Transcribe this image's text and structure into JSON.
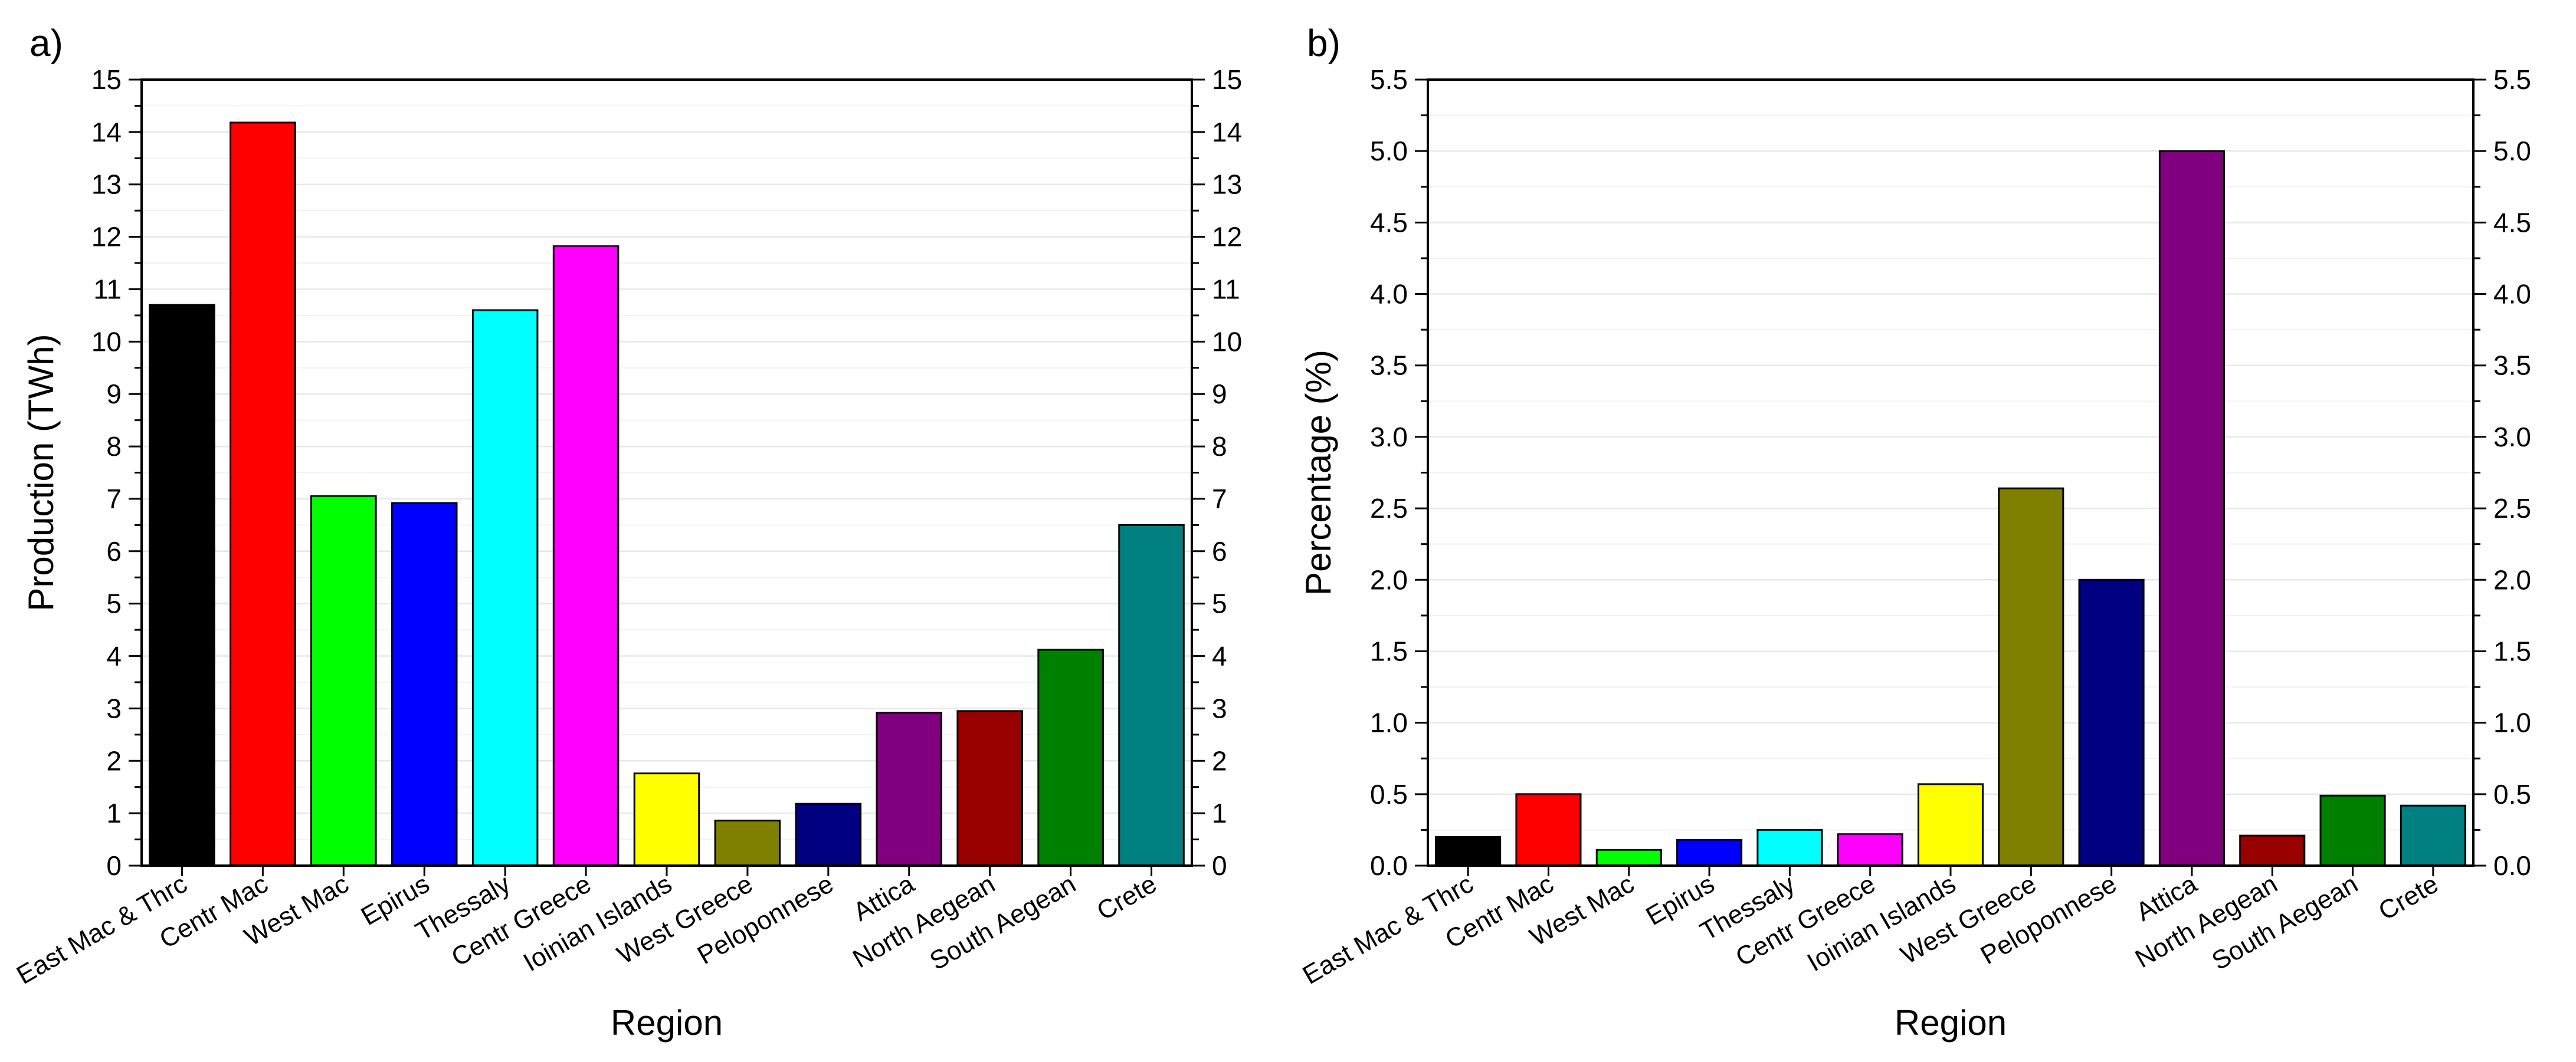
{
  "chart_data": [
    {
      "panel_label": "a)",
      "type": "bar",
      "xlabel": "Region",
      "ylabel": "Production (TWh)",
      "ylim": [
        0,
        15
      ],
      "y_major_step": 1,
      "y_decimals": 0,
      "categories": [
        "East Mac & Thrc",
        "Centr Mac",
        "West Mac",
        "Epirus",
        "Thessaly",
        "Centr Greece",
        "Ioinian Islands",
        "West Greece",
        "Peloponnese",
        "Attica",
        "North Aegean",
        "South Aegean",
        "Crete"
      ],
      "values": [
        10.7,
        14.18,
        7.05,
        6.92,
        10.6,
        11.82,
        1.76,
        0.86,
        1.18,
        2.92,
        2.95,
        4.12,
        6.5
      ],
      "colors": [
        "#000000",
        "#ff0000",
        "#00ff00",
        "#0000ff",
        "#00ffff",
        "#ff00ff",
        "#ffff00",
        "#808000",
        "#000080",
        "#800080",
        "#990000",
        "#008000",
        "#008080"
      ],
      "grid": true
    },
    {
      "panel_label": "b)",
      "type": "bar",
      "xlabel": "Region",
      "ylabel": "Percentage (%)",
      "ylim": [
        0,
        5.5
      ],
      "y_major_step": 0.5,
      "y_decimals": 1,
      "categories": [
        "East Mac & Thrc",
        "Centr Mac",
        "West Mac",
        "Epirus",
        "Thessaly",
        "Centr Greece",
        "Ioinian Islands",
        "West Greece",
        "Peloponnese",
        "Attica",
        "North Aegean",
        "South Aegean",
        "Crete"
      ],
      "values": [
        0.2,
        0.5,
        0.11,
        0.18,
        0.25,
        0.22,
        0.57,
        2.64,
        2.0,
        5.0,
        0.21,
        0.49,
        0.42
      ],
      "colors": [
        "#000000",
        "#ff0000",
        "#00ff00",
        "#0000ff",
        "#00ffff",
        "#ff00ff",
        "#ffff00",
        "#808000",
        "#000080",
        "#800080",
        "#990000",
        "#008000",
        "#008080"
      ],
      "grid": true
    }
  ]
}
